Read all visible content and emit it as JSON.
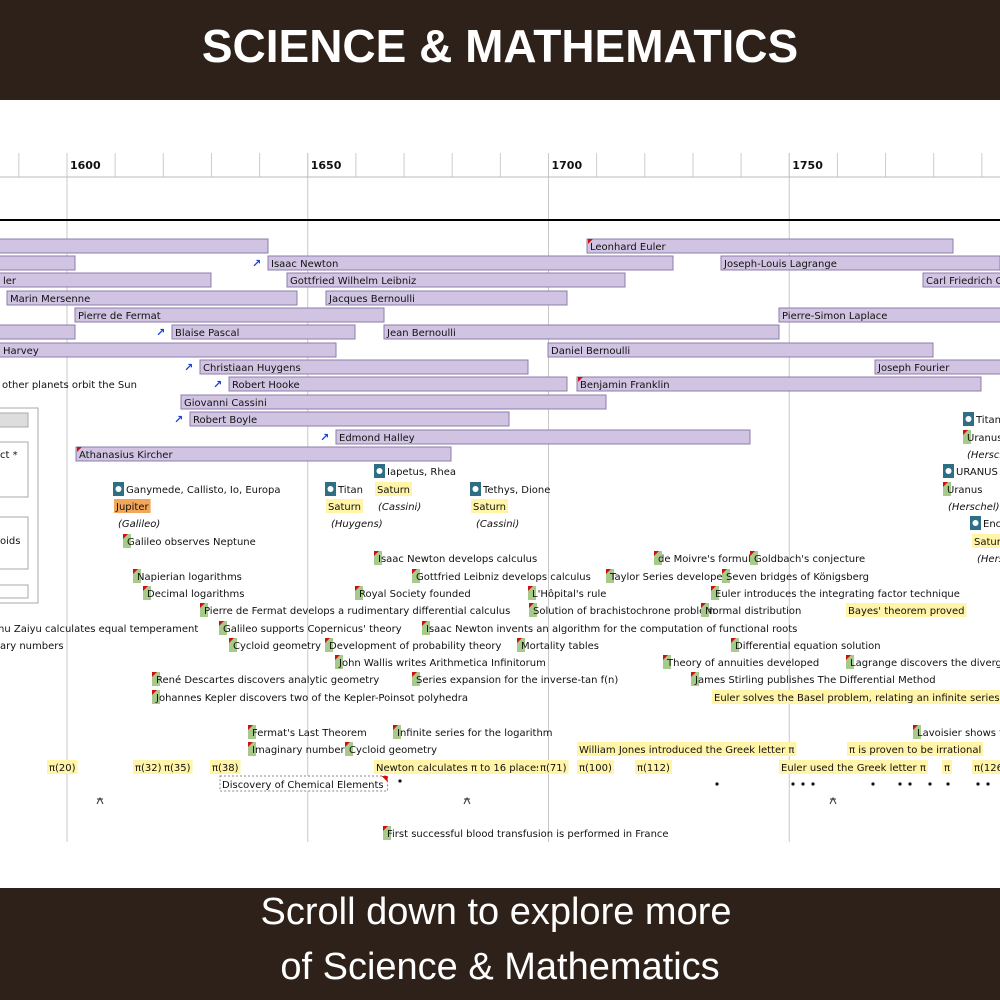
{
  "header": {
    "title": "SCIENCE & MATHEMATICS"
  },
  "footer": {
    "lines": [
      "Scroll down to explore more",
      "of Science & Mathematics"
    ]
  },
  "timeline": {
    "ticks": [
      1600,
      1650,
      1700,
      1750
    ],
    "people": [
      "Leonhard Euler",
      "Isaac Newton",
      "Joseph-Louis Lagrange",
      "ler",
      "Gottfried Wilhelm Leibniz",
      "Carl Friedrich G",
      "Marin Mersenne",
      "Jacques Bernoulli",
      "Pierre de Fermat",
      "Pierre-Simon Laplace",
      "Blaise Pascal",
      "Jean Bernoulli",
      "Harvey",
      "Daniel Bernoulli",
      "Christiaan Huygens",
      "Joseph Fourier",
      "Robert Hooke",
      "Benjamin Franklin",
      "Giovanni Cassini",
      "Robert Boyle",
      "Edmond Halley",
      "Athanasius Kircher"
    ],
    "side_panel": [
      "ct *",
      "oids"
    ],
    "events": [
      "other planets orbit the Sun",
      "Titani",
      "Uranus",
      "(Hersch",
      "Iapetus, Rhea",
      "URANUS",
      "Ganymede, Callisto, Io, Europa",
      "Titan",
      "Saturn",
      "Tethys, Dione",
      "Uranus",
      "Jupiter",
      "Saturn",
      "(Cassini)",
      "Saturn",
      "(Herschel)",
      "(Galileo)",
      "(Huygens)",
      "(Cassini)",
      "Enc",
      "Galileo observes Neptune",
      "Saturn",
      "Isaac Newton develops calculus",
      "de Moivre's formula",
      "Goldbach's conjecture",
      "(Hers",
      "Napierian logarithms",
      "Gottfried Leibniz develops calculus",
      "Taylor Series developed",
      "Seven bridges of Königsberg",
      "Decimal logarithms",
      "Royal Society founded",
      "L'Hôpital's rule",
      "Euler introduces the integrating factor technique",
      "Pierre de Fermat develops a rudimentary differential calculus",
      "Solution of brachistochrone problem",
      "Normal distribution",
      "Bayes' theorem proved",
      "hu Zaiyu calculates equal temperament",
      "Galileo supports Copernicus' theory",
      "Isaac Newton invents an algorithm for the computation of functional roots",
      "ary numbers",
      "Cycloid geometry",
      "Development of probability theory",
      "Mortality tables",
      "Differential equation solution",
      "John Wallis writes Arithmetica Infinitorum",
      "Theory of annuities developed",
      "Lagrange discovers the divergen",
      "René Descartes discovers analytic geometry",
      "Series expansion for the inverse-tan f(n)",
      "James Stirling publishes The Differential Method",
      "Johannes Kepler discovers two of the Kepler-Poinsot polyhedra",
      "Euler solves the Basel problem, relating an infinite series to π",
      "Fermat's Last Theorem",
      "Infinite series for the logarithm",
      "Lavoisier shows f",
      "Imaginary numbers",
      "Cycloid geometry",
      "William Jones introduced the Greek letter π",
      "π is proven to be irrational",
      "π(20)",
      "π(32)",
      "π(35)",
      "π(38)",
      "Newton calculates π to 16 places",
      "π(71)",
      "π(100)",
      "π(112)",
      "Euler used the Greek letter π",
      "π",
      "π(126",
      "Discovery of Chemical Elements",
      "First successful blood transfusion is performed in France"
    ]
  }
}
